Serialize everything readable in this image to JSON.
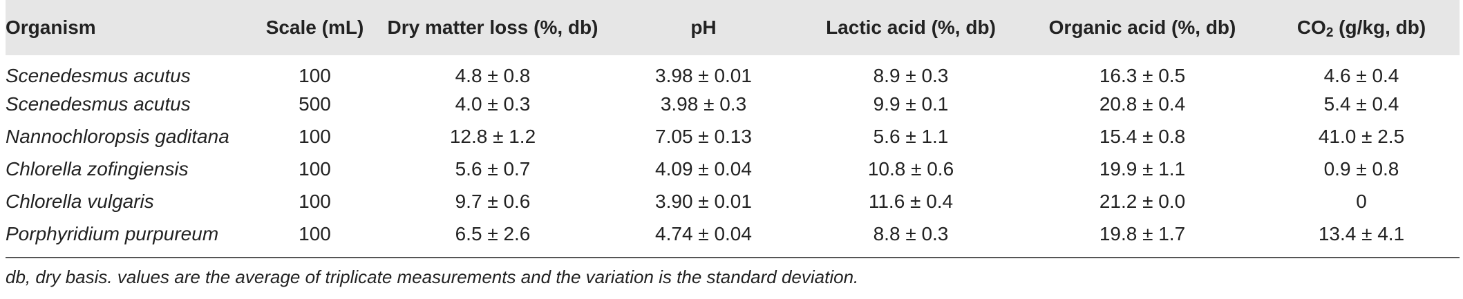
{
  "table": {
    "headers": [
      "Organism",
      "Scale (mL)",
      "Dry matter loss (%, db)",
      "pH",
      "Lactic acid (%, db)",
      "Organic acid (%, db)",
      "CO₂ (g/kg, db)"
    ],
    "rows": [
      [
        "Scenedesmus acutus",
        "100",
        "4.8 ± 0.8",
        "3.98 ± 0.01",
        "8.9 ± 0.3",
        "16.3 ± 0.5",
        "4.6 ± 0.4"
      ],
      [
        "Scenedesmus acutus",
        "500",
        "4.0 ± 0.3",
        "3.98 ± 0.3",
        "9.9 ± 0.1",
        "20.8 ± 0.4",
        "5.4 ± 0.4"
      ],
      [
        "Nannochloropsis gaditana",
        "100",
        "12.8 ± 1.2",
        "7.05 ± 0.13",
        "5.6 ± 1.1",
        "15.4 ± 0.8",
        "41.0 ± 2.5"
      ],
      [
        "Chlorella zofingiensis",
        "100",
        "5.6 ± 0.7",
        "4.09 ± 0.04",
        "10.8 ± 0.6",
        "19.9 ± 1.1",
        "0.9 ± 0.8"
      ],
      [
        "Chlorella vulgaris",
        "100",
        "9.7 ± 0.6",
        "3.90 ± 0.01",
        "11.6 ± 0.4",
        "21.2 ± 0.0",
        "0"
      ],
      [
        "Porphyridium purpureum",
        "100",
        "6.5 ± 2.6",
        "4.74 ± 0.04",
        "8.8 ± 0.3",
        "19.8 ± 1.7",
        "13.4 ± 4.1"
      ]
    ]
  },
  "footnote": "db, dry basis. values are the average of triplicate measurements and the variation is the standard deviation."
}
